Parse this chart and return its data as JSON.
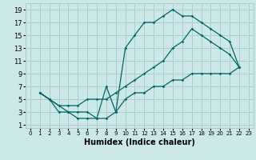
{
  "xlabel": "Humidex (Indice chaleur)",
  "bg_color": "#cce8e8",
  "grid_color": "#aacccc",
  "line_color": "#006666",
  "xlim": [
    -0.5,
    23.5
  ],
  "ylim": [
    0.5,
    20
  ],
  "xticks": [
    0,
    1,
    2,
    3,
    4,
    5,
    6,
    7,
    8,
    9,
    10,
    11,
    12,
    13,
    14,
    15,
    16,
    17,
    18,
    19,
    20,
    21,
    22,
    23
  ],
  "yticks": [
    1,
    3,
    5,
    7,
    9,
    11,
    13,
    15,
    17,
    19
  ],
  "line1_x": [
    1,
    2,
    3,
    4,
    5,
    6,
    7,
    8,
    9,
    10,
    11,
    12,
    13,
    14,
    15,
    16,
    17,
    18,
    19,
    20,
    21,
    22
  ],
  "line1_y": [
    6,
    5,
    4,
    3,
    3,
    3,
    2,
    2,
    3,
    13,
    15,
    17,
    17,
    18,
    19,
    18,
    18,
    17,
    16,
    15,
    14,
    10
  ],
  "line2_x": [
    1,
    2,
    3,
    4,
    5,
    6,
    7,
    8,
    9,
    10,
    11,
    12,
    13,
    14,
    15,
    16,
    17,
    18,
    19,
    20,
    21,
    22
  ],
  "line2_y": [
    6,
    5,
    4,
    4,
    4,
    5,
    5,
    5,
    6,
    7,
    8,
    9,
    10,
    11,
    13,
    14,
    16,
    15,
    14,
    13,
    12,
    10
  ],
  "line3_x": [
    1,
    2,
    3,
    4,
    5,
    6,
    7,
    8,
    9,
    10,
    11,
    12,
    13,
    14,
    15,
    16,
    17,
    18,
    19,
    20,
    21,
    22
  ],
  "line3_y": [
    6,
    5,
    3,
    3,
    2,
    2,
    2,
    7,
    3,
    5,
    6,
    6,
    7,
    7,
    8,
    8,
    9,
    9,
    9,
    9,
    9,
    10
  ]
}
